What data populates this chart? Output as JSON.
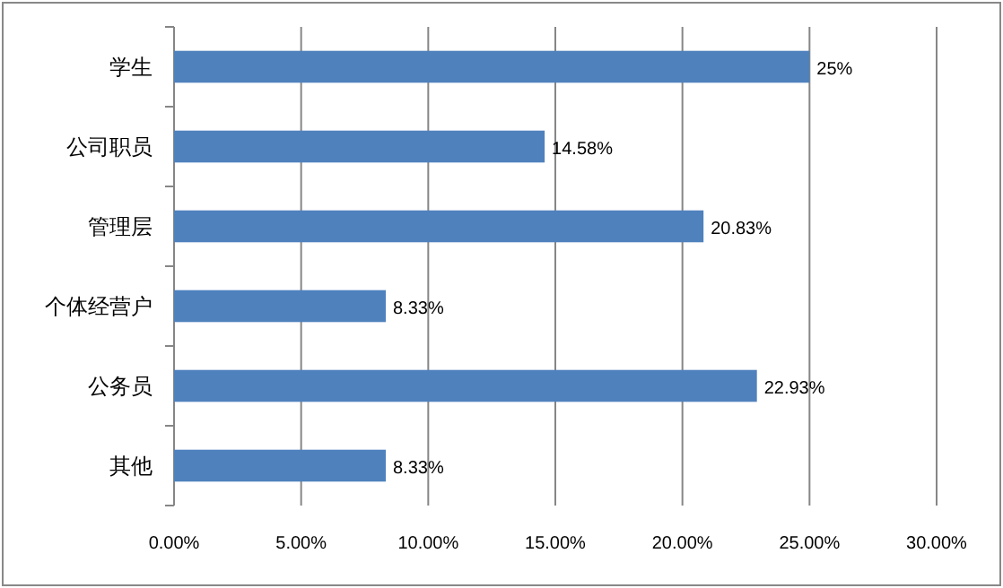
{
  "chart_data": {
    "type": "bar",
    "orientation": "horizontal",
    "categories": [
      "学生",
      "公司职员",
      "管理层",
      "个体经营户",
      "公务员",
      "其他"
    ],
    "values": [
      25,
      14.58,
      20.83,
      8.33,
      22.93,
      8.33
    ],
    "value_labels": [
      "25%",
      "14.58%",
      "20.83%",
      "8.33%",
      "22.93%",
      "8.33%"
    ],
    "color": "#4f81bd",
    "xlim": [
      0,
      30
    ],
    "xticks": [
      {
        "value": 0,
        "label": "0.00%"
      },
      {
        "value": 5,
        "label": "5.00%"
      },
      {
        "value": 10,
        "label": "10.00%"
      },
      {
        "value": 15,
        "label": "15.00%"
      },
      {
        "value": 20,
        "label": "20.00%"
      },
      {
        "value": 25,
        "label": "25.00%"
      },
      {
        "value": 30,
        "label": "30.00%"
      }
    ],
    "grid": "x"
  }
}
